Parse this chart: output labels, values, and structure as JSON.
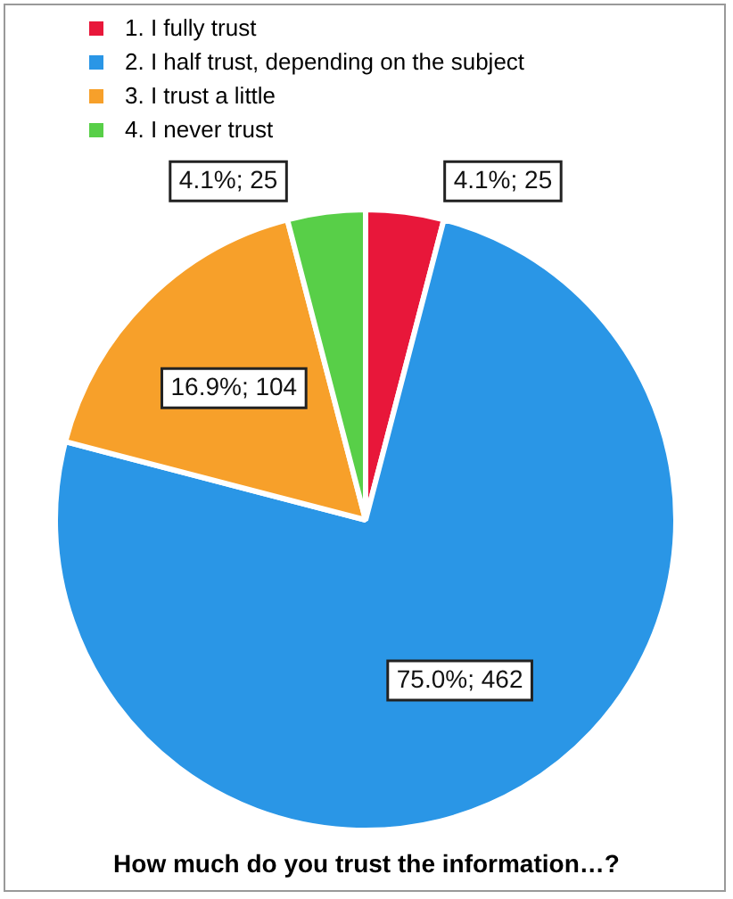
{
  "chart_data": {
    "type": "pie",
    "title": "How much do you trust the information…?",
    "categories": [
      "1. I fully trust",
      "2. I half trust, depending on the subject",
      "3. I trust a little",
      "4. I never trust"
    ],
    "values": [
      25,
      462,
      104,
      25
    ],
    "colors": [
      "#e8173a",
      "#2a96e6",
      "#f7a02a",
      "#58cf48"
    ],
    "value_labels": [
      "4.1%; 25",
      "75.0%; 462",
      "16.9%; 104",
      "4.1%; 25"
    ],
    "legend": "top left"
  }
}
